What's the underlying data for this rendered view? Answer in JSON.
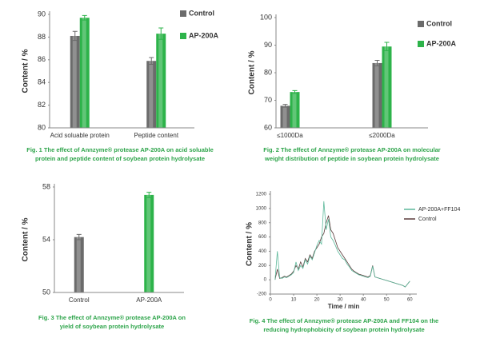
{
  "chart_data": [
    {
      "type": "bar",
      "ylabel": "Content / %",
      "categories": [
        "Acid soluable protein",
        "Peptide content"
      ],
      "series": [
        {
          "name": "Control",
          "color": "#6b6b6b",
          "values": [
            88.1,
            85.9
          ],
          "errors": [
            0.4,
            0.3
          ]
        },
        {
          "name": "AP-200A",
          "color": "#2db34a",
          "values": [
            89.7,
            88.3
          ],
          "errors": [
            0.2,
            0.5
          ]
        }
      ],
      "ylim": [
        80,
        90
      ],
      "yticks": [
        80,
        82,
        84,
        86,
        88,
        90
      ],
      "caption": [
        "Fig. 1  The effect of Annzyme® protease AP-200A on acid soluable",
        "protein and peptide content of soybean protein hydrolysate"
      ]
    },
    {
      "type": "bar",
      "ylabel": "Content / %",
      "categories": [
        "≤1000Da",
        "≤2000Da"
      ],
      "series": [
        {
          "name": "Control",
          "color": "#6b6b6b",
          "values": [
            68,
            83.5
          ],
          "errors": [
            0.5,
            1
          ]
        },
        {
          "name": "AP-200A",
          "color": "#2db34a",
          "values": [
            73,
            89.5
          ],
          "errors": [
            0.5,
            1.5
          ]
        }
      ],
      "ylim": [
        60,
        100
      ],
      "yticks": [
        60,
        70,
        80,
        90,
        100
      ],
      "caption": [
        "Fig. 2  The effect of Annzyme® protease AP-200A on molecular",
        "weight distribution of peptide in soybean protein hydrolysate"
      ]
    },
    {
      "type": "bar",
      "ylabel": "Content / %",
      "categories": [
        "Control",
        "AP-200A"
      ],
      "values": [
        54.2,
        57.4
      ],
      "errors": [
        0.2,
        0.2
      ],
      "colors": [
        "#6b6b6b",
        "#2db34a"
      ],
      "ylim": [
        50,
        58
      ],
      "yticks": [
        50,
        54,
        58
      ],
      "caption": [
        "Fig. 3  The effect of Annzyme® protease AP-200A on",
        "yield of soybean protein hydrolysate"
      ]
    },
    {
      "type": "line",
      "ylabel": "Content / %",
      "xlabel": "Time / min",
      "x": [
        2,
        3,
        4,
        5,
        6,
        7,
        8,
        9,
        10,
        11,
        12,
        13,
        14,
        15,
        16,
        17,
        18,
        19,
        20,
        21,
        22,
        23,
        24,
        25,
        26,
        27,
        28,
        29,
        30,
        31,
        32,
        33,
        34,
        35,
        36,
        37,
        38,
        39,
        40,
        41,
        42,
        43,
        44,
        45,
        46,
        47,
        48,
        49,
        50,
        51,
        52,
        53,
        54,
        55,
        56,
        57,
        58,
        59,
        60
      ],
      "series": [
        {
          "name": "AP-200A+FF104",
          "color": "#5cb89a",
          "values": [
            0,
            400,
            30,
            20,
            40,
            30,
            50,
            70,
            100,
            250,
            130,
            200,
            160,
            280,
            220,
            330,
            280,
            380,
            480,
            550,
            500,
            1100,
            700,
            850,
            600,
            550,
            480,
            400,
            350,
            300,
            280,
            220,
            180,
            130,
            110,
            90,
            70,
            60,
            50,
            40,
            30,
            50,
            190,
            40,
            30,
            20,
            10,
            0,
            -10,
            -20,
            -30,
            -40,
            -50,
            -60,
            -70,
            -80,
            -100,
            -60,
            -20
          ]
        },
        {
          "name": "Control",
          "color": "#5a3a3a",
          "values": [
            0,
            150,
            20,
            30,
            50,
            40,
            60,
            80,
            120,
            200,
            150,
            250,
            180,
            300,
            250,
            350,
            300,
            400,
            450,
            500,
            600,
            650,
            800,
            900,
            700,
            650,
            550,
            450,
            400,
            350,
            300,
            250,
            200,
            150,
            120,
            100,
            80,
            70,
            60,
            50,
            40,
            60,
            200,
            40,
            30,
            20,
            10,
            0,
            -10,
            -20,
            -30,
            -40,
            -50,
            -60,
            -70,
            -80,
            -100,
            -60,
            -20
          ]
        }
      ],
      "xlim": [
        0,
        63
      ],
      "xticks": [
        0,
        10,
        20,
        30,
        40,
        50,
        60
      ],
      "ylim": [
        -200,
        1200
      ],
      "yticks": [
        -200,
        0,
        200,
        400,
        600,
        800,
        1000,
        1200
      ],
      "caption": [
        "Fig. 4  The effect of Annzyme® protease AP-200A  and FF104 on the",
        "reducing hydrophobicity of soybean protein hydrolysate"
      ]
    }
  ]
}
